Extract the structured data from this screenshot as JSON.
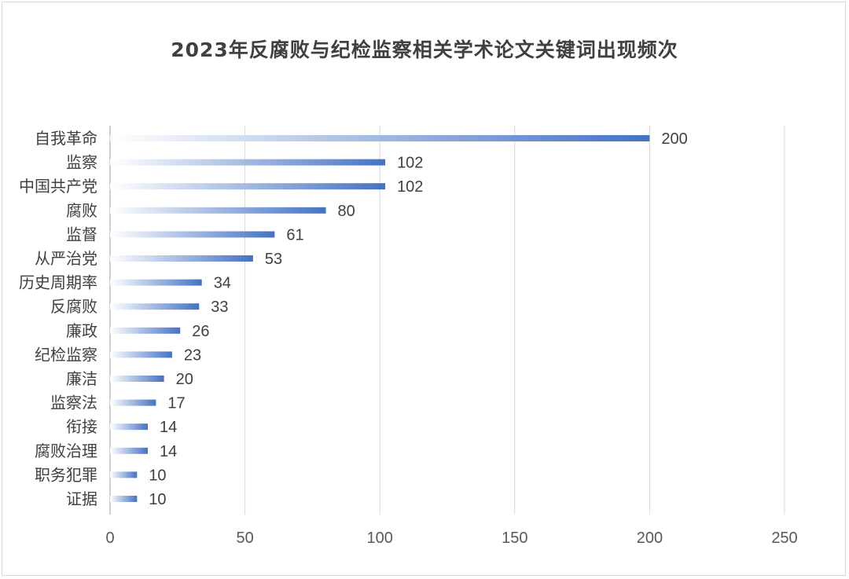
{
  "chart_data": {
    "type": "bar",
    "orientation": "horizontal",
    "title": "2023年反腐败与纪检监察相关学术论文关键词出现频次",
    "categories": [
      "自我革命",
      "监察",
      "中国共产党",
      "腐败",
      "监督",
      "从严治党",
      "历史周期率",
      "反腐败",
      "廉政",
      "纪检监察",
      "廉洁",
      "监察法",
      "衔接",
      "腐败治理",
      "职务犯罪",
      "证据"
    ],
    "values": [
      200,
      102,
      102,
      80,
      61,
      53,
      34,
      33,
      26,
      23,
      20,
      17,
      14,
      14,
      10,
      10
    ],
    "xlim": [
      0,
      250
    ],
    "xticks": [
      0,
      50,
      100,
      150,
      200,
      250
    ],
    "grid": true,
    "bar_color": "#4472c4",
    "bar_fill": "gradient"
  }
}
